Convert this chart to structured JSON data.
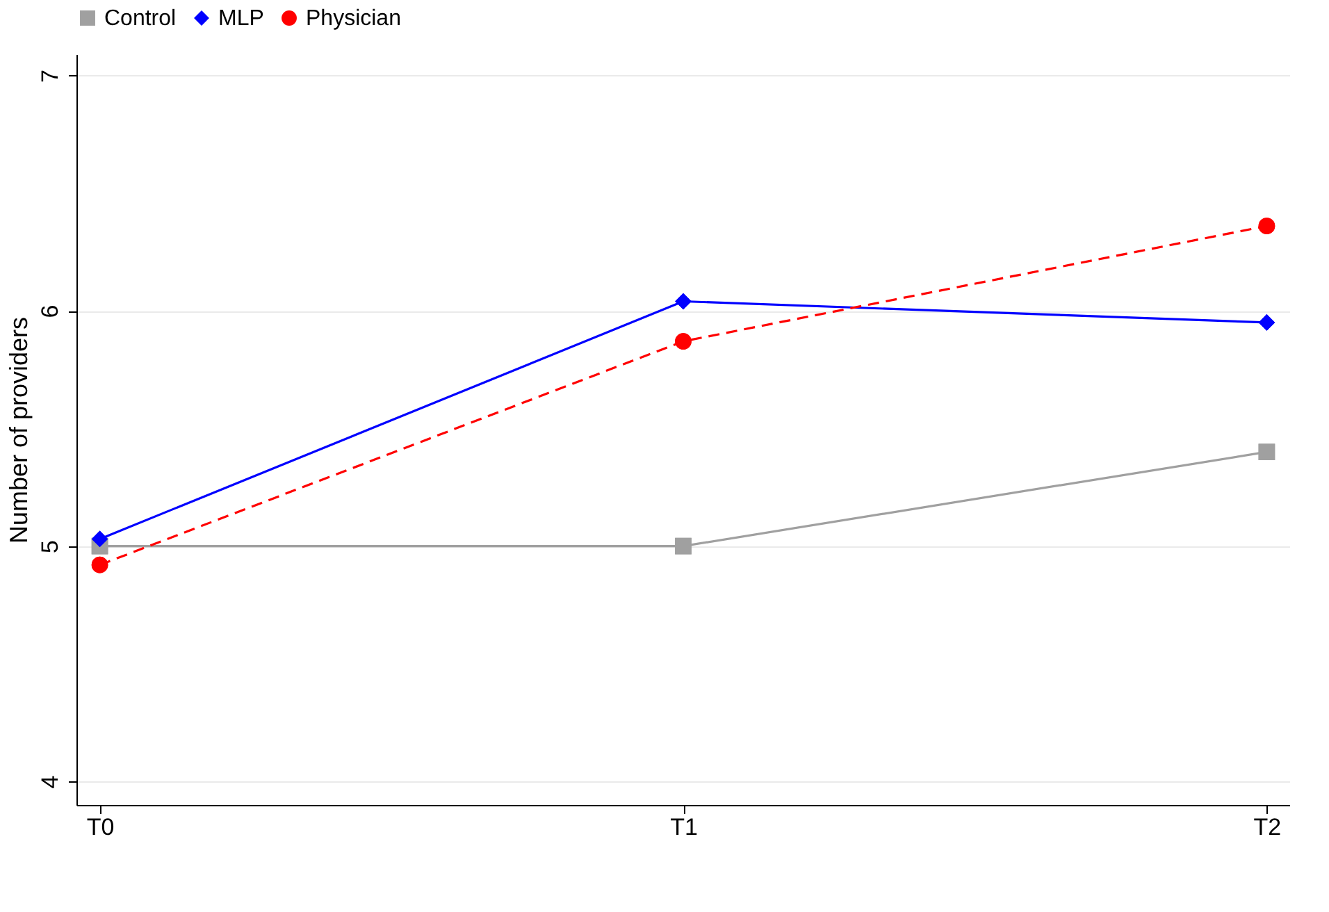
{
  "chart_data": {
    "type": "line",
    "ylabel": "Number of providers",
    "categories": [
      "T0",
      "T1",
      "T2"
    ],
    "series": [
      {
        "name": "Control",
        "color": "#a0a0a0",
        "values": [
          5.0,
          5.0,
          5.4
        ],
        "marker": "square",
        "line_style": "solid"
      },
      {
        "name": "MLP",
        "color": "#0000ff",
        "values": [
          5.03,
          6.04,
          5.95
        ],
        "marker": "diamond",
        "line_style": "solid"
      },
      {
        "name": "Physician",
        "color": "#ff0000",
        "values": [
          4.92,
          5.87,
          6.36
        ],
        "marker": "circle",
        "line_style": "dashed"
      }
    ],
    "ylim": [
      3.9,
      7.09
    ],
    "yticks": [
      4,
      5,
      6,
      7
    ],
    "grid": "y",
    "legend": "top"
  }
}
